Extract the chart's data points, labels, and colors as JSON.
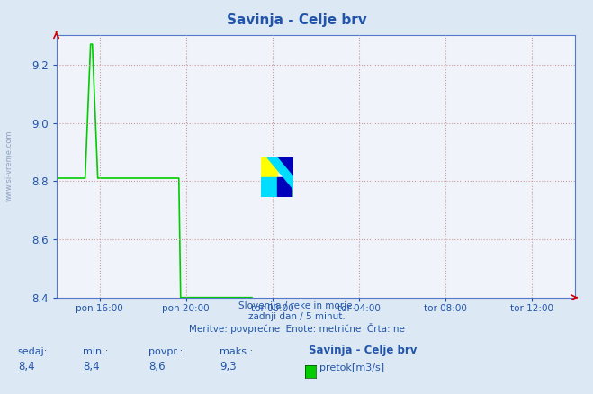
{
  "title": "Savinja - Celje brv",
  "bg_color": "#dce8f4",
  "plot_bg_color": "#f0f4fa",
  "line_color": "#00cc00",
  "axis_color": "#2255aa",
  "spine_color": "#5577cc",
  "grid_color_main": "#cc9999",
  "grid_color_minor": "#ddbbbb",
  "text_color": "#2255aa",
  "watermark_color": "#8899bb",
  "ylim": [
    8.4,
    9.3
  ],
  "yticks": [
    8.4,
    8.6,
    8.8,
    9.0,
    9.2
  ],
  "xlim": [
    0,
    288
  ],
  "xtick_labels": [
    "pon 16:00",
    "pon 20:00",
    "tor 00:00",
    "tor 04:00",
    "tor 08:00",
    "tor 12:00"
  ],
  "xtick_positions": [
    24,
    72,
    120,
    168,
    216,
    264
  ],
  "subtitle_lines": [
    "Slovenija / reke in morje.",
    "zadnji dan / 5 minut.",
    "Meritve: povprečne  Enote: metrične  Črta: ne"
  ],
  "footer_labels": [
    "sedaj:",
    "min.:",
    "povpr.:",
    "maks.:"
  ],
  "footer_values": [
    "8,4",
    "8,4",
    "8,6",
    "9,3"
  ],
  "legend_name": "Savinja - Celje brv",
  "legend_unit": "pretok[m3/s]",
  "watermark": "www.si-vreme.com",
  "n_points": 288,
  "flat_before": 8.81,
  "spike_rise_start": 16,
  "spike_peak_start": 19,
  "spike_peak_end": 20,
  "spike_fall_end": 23,
  "spike_peak_val": 9.27,
  "flat_after_spike": 8.81,
  "drop_at": 68,
  "drop_end": 69,
  "flat_after_drop": 8.4,
  "data_end": 110
}
